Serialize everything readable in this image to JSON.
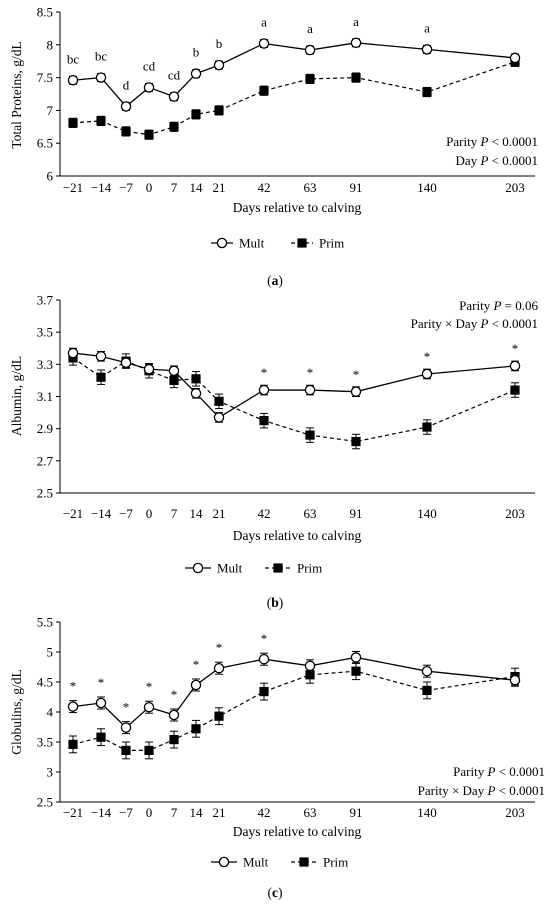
{
  "chart_data": [
    {
      "type": "line",
      "panel_label": "(a)",
      "panel_letter": "a",
      "ylabel": "Total Proteins, g/dL",
      "xlabel": "Days relative to calving",
      "x": [
        "−21",
        "−14",
        "−7",
        "0",
        "7",
        "14",
        "21",
        "42",
        "63",
        "91",
        "140",
        "203"
      ],
      "ylim": [
        6,
        8.5
      ],
      "yticks": [
        "6",
        "6.5",
        "7",
        "7.5",
        "8",
        "8.5"
      ],
      "series": [
        {
          "name": "Mult",
          "values": [
            7.46,
            7.5,
            7.06,
            7.35,
            7.21,
            7.56,
            7.69,
            8.02,
            7.92,
            8.03,
            7.93,
            7.8
          ],
          "error": [
            0.06,
            0.06,
            0.06,
            0.06,
            0.06,
            0.06,
            0.06,
            0.06,
            0.06,
            0.06,
            0.06,
            0.06
          ]
        },
        {
          "name": "Prim",
          "values": [
            6.81,
            6.84,
            6.68,
            6.63,
            6.75,
            6.94,
            7.0,
            7.3,
            7.48,
            7.5,
            7.28,
            7.74
          ],
          "error": [
            0.07,
            0.07,
            0.07,
            0.07,
            0.07,
            0.07,
            0.07,
            0.07,
            0.07,
            0.07,
            0.07,
            0.07
          ]
        }
      ],
      "significance": [
        "bc",
        "bc",
        "d",
        "cd",
        "cd",
        "b",
        "b",
        "a",
        "a",
        "a",
        "a",
        ""
      ],
      "stats": [
        {
          "pre": "Parity ",
          "p": "P",
          "post": " < 0.0001"
        },
        {
          "pre": "Day ",
          "p": "P",
          "post": " < 0.0001"
        }
      ]
    },
    {
      "type": "line",
      "panel_label": "(b)",
      "panel_letter": "b",
      "ylabel": "Albumin, g/dL",
      "xlabel": "Days relative to calving",
      "x": [
        "−21",
        "−14",
        "−7",
        "0",
        "7",
        "14",
        "21",
        "42",
        "63",
        "91",
        "140",
        "203"
      ],
      "ylim": [
        2.5,
        3.7
      ],
      "yticks": [
        "2.5",
        "2.7",
        "2.9",
        "3.1",
        "3.3",
        "3.5",
        "3.7"
      ],
      "series": [
        {
          "name": "Mult",
          "values": [
            3.37,
            3.35,
            3.31,
            3.27,
            3.26,
            3.12,
            2.97,
            3.14,
            3.14,
            3.13,
            3.24,
            3.29
          ],
          "error": [
            0.03,
            0.03,
            0.03,
            0.03,
            0.03,
            0.03,
            0.03,
            0.03,
            0.03,
            0.03,
            0.03,
            0.03
          ]
        },
        {
          "name": "Prim",
          "values": [
            3.34,
            3.22,
            3.32,
            3.26,
            3.2,
            3.21,
            3.07,
            2.95,
            2.86,
            2.82,
            2.91,
            3.14
          ],
          "error": [
            0.045,
            0.045,
            0.045,
            0.045,
            0.045,
            0.045,
            0.045,
            0.045,
            0.045,
            0.045,
            0.045,
            0.045
          ]
        }
      ],
      "significance": [
        "",
        "",
        "",
        "",
        "",
        "",
        "",
        "*",
        "*",
        "*",
        "*",
        "*"
      ],
      "stats": [
        {
          "pre": "Parity ",
          "p": "P",
          "post": " = 0.06"
        },
        {
          "pre": "Parity × Day ",
          "p": "P",
          "post": " < 0.0001"
        }
      ]
    },
    {
      "type": "line",
      "panel_label": "(c)",
      "panel_letter": "c",
      "ylabel": "Globulins, g/dL",
      "xlabel": "Days relative to calving",
      "x": [
        "−21",
        "−14",
        "−7",
        "0",
        "7",
        "14",
        "21",
        "42",
        "63",
        "91",
        "140",
        "203"
      ],
      "ylim": [
        2.5,
        5.5
      ],
      "yticks": [
        "2.5",
        "3",
        "3.5",
        "4",
        "4.5",
        "5",
        "5.5"
      ],
      "series": [
        {
          "name": "Mult",
          "values": [
            4.09,
            4.15,
            3.74,
            4.08,
            3.95,
            4.45,
            4.73,
            4.88,
            4.77,
            4.91,
            4.68,
            4.53
          ],
          "error": [
            0.1,
            0.1,
            0.1,
            0.1,
            0.1,
            0.1,
            0.1,
            0.1,
            0.1,
            0.1,
            0.1,
            0.1
          ]
        },
        {
          "name": "Prim",
          "values": [
            3.46,
            3.58,
            3.36,
            3.36,
            3.54,
            3.72,
            3.93,
            4.34,
            4.62,
            4.68,
            4.36,
            4.59
          ],
          "error": [
            0.14,
            0.14,
            0.14,
            0.14,
            0.14,
            0.14,
            0.14,
            0.14,
            0.14,
            0.14,
            0.14,
            0.14
          ]
        }
      ],
      "significance": [
        "*",
        "*",
        "*",
        "*",
        "*",
        "*",
        "*",
        "*",
        "",
        "",
        "",
        ""
      ],
      "stats": [
        {
          "pre": "Parity ",
          "p": "P",
          "post": " < 0.0001"
        },
        {
          "pre": "Parity × Day ",
          "p": "P",
          "post": " < 0.0001"
        }
      ]
    }
  ]
}
